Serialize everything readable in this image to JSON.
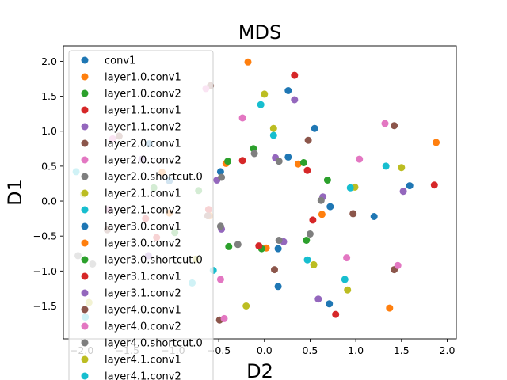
{
  "chart_data": {
    "type": "scatter",
    "title": "MDS",
    "xlabel": "D2",
    "ylabel": "D1",
    "xlim": [
      -2.2,
      2.1
    ],
    "ylim": [
      -1.97,
      2.22
    ],
    "xticks": [
      -2.0,
      -1.5,
      -1.0,
      -0.5,
      0.0,
      0.5,
      1.0,
      1.5,
      2.0
    ],
    "yticks": [
      -1.5,
      -1.0,
      -0.5,
      0.0,
      0.5,
      1.0,
      1.5,
      2.0
    ],
    "xtick_labels": [
      "−2.0",
      "−1.5",
      "−1.0",
      "−0.5",
      "0.0",
      "0.5",
      "1.0",
      "1.5",
      "2.0"
    ],
    "ytick_labels": [
      "−1.5",
      "−1.0",
      "−0.5",
      "0.0",
      "0.5",
      "1.0",
      "1.5",
      "2.0"
    ],
    "grid": false,
    "legend_position": "top-left",
    "series": [
      {
        "name": "conv1",
        "color": "#1f77b4",
        "points": [
          [
            0.55,
            1.04
          ],
          [
            1.59,
            0.22
          ],
          [
            1.2,
            -0.22
          ],
          [
            0.72,
            -0.08
          ],
          [
            0.26,
            0.63
          ],
          [
            0.15,
            -1.22
          ],
          [
            0.15,
            -0.68
          ],
          [
            0.71,
            -1.47
          ],
          [
            -0.48,
            0.42
          ],
          [
            0.26,
            1.58
          ]
        ]
      },
      {
        "name": "layer1.0.conv1",
        "color": "#ff7f0e",
        "points": [
          [
            -0.18,
            1.99
          ],
          [
            1.88,
            0.84
          ],
          [
            1.37,
            -1.53
          ],
          [
            0.02,
            -0.67
          ],
          [
            0.63,
            -0.19
          ],
          [
            0.37,
            0.53
          ],
          [
            -0.6,
            -0.21
          ],
          [
            -0.42,
            0.54
          ]
        ]
      },
      {
        "name": "layer1.0.conv2",
        "color": "#2ca02c",
        "points": [
          [
            -0.12,
            0.75
          ],
          [
            0.69,
            0.3
          ],
          [
            0.46,
            -0.56
          ],
          [
            -0.39,
            -0.65
          ],
          [
            -0.03,
            -0.68
          ],
          [
            0.43,
            0.55
          ],
          [
            -0.4,
            0.57
          ],
          [
            -0.72,
            0.15
          ]
        ]
      },
      {
        "name": "layer1.1.conv1",
        "color": "#d62728",
        "points": [
          [
            0.33,
            1.8
          ],
          [
            1.86,
            0.23
          ],
          [
            0.47,
            0.44
          ],
          [
            0.78,
            -1.62
          ],
          [
            0.53,
            -0.27
          ],
          [
            -0.06,
            -0.64
          ],
          [
            -0.24,
            0.58
          ],
          [
            -0.61,
            -0.12
          ]
        ]
      },
      {
        "name": "layer1.1.conv2",
        "color": "#9467bd",
        "points": [
          [
            0.33,
            1.45
          ],
          [
            1.52,
            0.14
          ],
          [
            0.12,
            0.62
          ],
          [
            0.59,
            -1.4
          ],
          [
            0.64,
            0.06
          ],
          [
            0.21,
            -0.58
          ],
          [
            -0.47,
            -0.4
          ],
          [
            -0.52,
            0.3
          ]
        ]
      },
      {
        "name": "layer2.0.conv1",
        "color": "#8c564b",
        "points": [
          [
            -0.59,
            1.65
          ],
          [
            1.42,
            1.08
          ],
          [
            1.42,
            -0.98
          ],
          [
            0.97,
            -0.18
          ],
          [
            0.48,
            0.87
          ],
          [
            0.11,
            -0.98
          ],
          [
            -0.49,
            -1.7
          ],
          [
            -0.62,
            -0.21
          ]
        ]
      },
      {
        "name": "layer2.0.conv2",
        "color": "#e377c2",
        "points": [
          [
            -0.64,
            1.61
          ],
          [
            1.04,
            0.6
          ],
          [
            1.46,
            -0.92
          ],
          [
            1.32,
            1.11
          ],
          [
            0.9,
            -0.81
          ],
          [
            -0.24,
            1.19
          ],
          [
            -0.48,
            -1.12
          ],
          [
            -0.44,
            -1.68
          ]
        ]
      },
      {
        "name": "layer2.0.shortcut.0",
        "color": "#7f7f7f",
        "points": [
          [
            0.16,
            0.57
          ],
          [
            0.62,
            0.01
          ],
          [
            0.5,
            -0.47
          ],
          [
            -0.29,
            -0.62
          ],
          [
            0.16,
            -0.56
          ],
          [
            -0.11,
            0.68
          ],
          [
            -0.47,
            0.34
          ],
          [
            -0.48,
            -0.36
          ]
        ]
      },
      {
        "name": "layer2.1.conv1",
        "color": "#bcbd22",
        "points": [
          [
            0.0,
            1.53
          ],
          [
            1.5,
            0.48
          ],
          [
            0.91,
            -1.27
          ],
          [
            0.99,
            0.2
          ],
          [
            0.54,
            -0.91
          ],
          [
            0.1,
            1.04
          ],
          [
            -0.2,
            -1.5
          ],
          [
            -0.75,
            -0.83
          ]
        ]
      },
      {
        "name": "layer2.1.conv2",
        "color": "#17becf",
        "points": [
          [
            -0.04,
            1.38
          ],
          [
            1.33,
            0.5
          ],
          [
            0.88,
            -1.12
          ],
          [
            0.94,
            0.19
          ],
          [
            0.47,
            -0.84
          ],
          [
            0.1,
            0.94
          ],
          [
            -0.56,
            -0.99
          ],
          [
            -0.79,
            -1.17
          ]
        ]
      },
      {
        "name": "layer3.0.conv1",
        "color": "#1f77b4",
        "points": [
          [
            -1.04,
            0.29
          ],
          [
            -1.26,
            0.82
          ]
        ]
      },
      {
        "name": "layer3.0.conv2",
        "color": "#ff7f0e",
        "points": [
          [
            -1.04,
            -0.17
          ],
          [
            -1.12,
            0.41
          ]
        ]
      },
      {
        "name": "layer3.0.shortcut.0",
        "color": "#2ca02c",
        "points": [
          [
            -0.98,
            -0.45
          ],
          [
            -1.21,
            0.19
          ]
        ]
      },
      {
        "name": "layer3.1.conv1",
        "color": "#d62728",
        "points": [
          [
            -1.18,
            -0.52
          ],
          [
            -1.3,
            -0.25
          ]
        ]
      },
      {
        "name": "layer3.1.conv2",
        "color": "#9467bd",
        "points": [
          [
            -1.27,
            -0.78
          ],
          [
            -1.34,
            0.6
          ]
        ]
      },
      {
        "name": "layer4.0.conv1",
        "color": "#8c564b",
        "points": [
          [
            -1.59,
            0.93
          ],
          [
            -1.72,
            -0.41
          ]
        ]
      },
      {
        "name": "layer4.0.conv2",
        "color": "#e377c2",
        "points": [
          [
            -1.66,
            0.89
          ],
          [
            -1.7,
            -0.12
          ]
        ]
      },
      {
        "name": "layer4.0.shortcut.0",
        "color": "#7f7f7f",
        "points": [
          [
            -1.88,
            -0.9
          ],
          [
            -2.04,
            -0.78
          ]
        ]
      },
      {
        "name": "layer4.1.conv1",
        "color": "#bcbd22",
        "points": [
          [
            -1.92,
            -1.45
          ],
          [
            -1.98,
            0.1
          ]
        ]
      },
      {
        "name": "layer4.1.conv2",
        "color": "#17becf",
        "points": [
          [
            -2.06,
            0.42
          ],
          [
            -1.96,
            -1.66
          ]
        ]
      }
    ]
  }
}
